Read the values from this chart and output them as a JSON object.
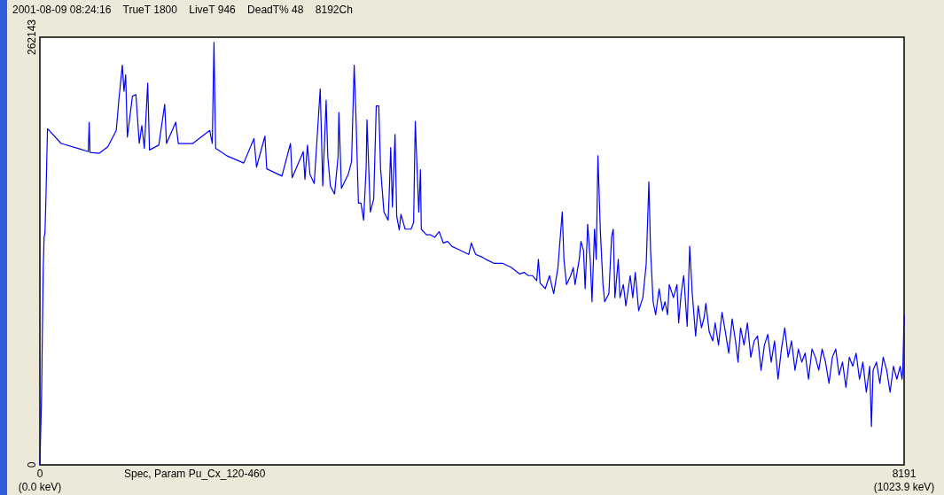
{
  "chart_data": {
    "type": "line",
    "title": "2001-08-09 08:24:16    TrueT 1800    LiveT 946    DeadT% 48    8192Ch",
    "annotations": [
      "Spec, Param Pu_Cx_120-460"
    ],
    "xlim": [
      0,
      8191
    ],
    "xticks": [
      0,
      8191
    ],
    "x2lim": [
      0,
      1023.9
    ],
    "x2ticks": [
      {
        "value": 0,
        "label": "(0.0 keV)"
      },
      {
        "value": 1023.9,
        "label": "(1023.9 keV)"
      }
    ],
    "ylim": [
      0,
      262143
    ],
    "yticks": [
      0,
      262143
    ],
    "grid": false,
    "marker": "none",
    "line_style": "solid",
    "series": [
      {
        "color": "#0000ff",
        "x": [
          0,
          8,
          16,
          24,
          32,
          40,
          48,
          56,
          72,
          89,
          201,
          362,
          459,
          467,
          475,
          563,
          644,
          724,
          749,
          781,
          797,
          813,
          829,
          877,
          910,
          942,
          966,
          990,
          1022,
          1039,
          1127,
          1183,
          1200,
          1288,
          1312,
          1449,
          1610,
          1634,
          1650,
          1666,
          1771,
          1932,
          2029,
          2053,
          2133,
          2150,
          2294,
          2375,
          2391,
          2496,
          2512,
          2536,
          2560,
          2600,
          2657,
          2681,
          2713,
          2729,
          2753,
          2793,
          2826,
          2834,
          2858,
          2922,
          2954,
          2979,
          2995,
          3019,
          3043,
          3068,
          3092,
          3100,
          3132,
          3164,
          3188,
          3212,
          3229,
          3261,
          3301,
          3309,
          3325,
          3341,
          3366,
          3382,
          3406,
          3422,
          3462,
          3518,
          3542,
          3558,
          3591,
          3607,
          3615,
          3663,
          3703,
          3743,
          3784,
          3824,
          3864,
          3904,
          3985,
          4065,
          4089,
          4130,
          4186,
          4226,
          4307,
          4387,
          4468,
          4548,
          4588,
          4629,
          4669,
          4709,
          4725,
          4741,
          4790,
          4830,
          4870,
          4910,
          4935,
          4951,
          4967,
          4991,
          5031,
          5055,
          5072,
          5112,
          5128,
          5152,
          5168,
          5192,
          5216,
          5233,
          5257,
          5273,
          5289,
          5313,
          5337,
          5353,
          5393,
          5418,
          5434,
          5450,
          5482,
          5498,
          5530,
          5554,
          5595,
          5619,
          5643,
          5675,
          5715,
          5747,
          5772,
          5788,
          5812,
          5836,
          5869,
          5901,
          5925,
          5949,
          5965,
          6005,
          6038,
          6054,
          6078,
          6102,
          6135,
          6159,
          6183,
          6215,
          6239,
          6271,
          6296,
          6312,
          6344,
          6377,
          6400,
          6432,
          6465,
          6497,
          6529,
          6561,
          6593,
          6617,
          6641,
          6674,
          6706,
          6738,
          6770,
          6802,
          6835,
          6867,
          6899,
          6931,
          6963,
          6996,
          7028,
          7060,
          7092,
          7124,
          7157,
          7189,
          7221,
          7253,
          7285,
          7318,
          7350,
          7382,
          7414,
          7446,
          7479,
          7511,
          7543,
          7575,
          7607,
          7640,
          7672,
          7704,
          7736,
          7768,
          7800,
          7833,
          7865,
          7881,
          7897,
          7929,
          7961,
          7993,
          8026,
          8058,
          8090,
          8122,
          8154,
          8171,
          8179,
          8191
        ],
        "values": [
          0,
          21000,
          42000,
          84000,
          121000,
          139500,
          142000,
          160000,
          206000,
          205000,
          197000,
          194000,
          192000,
          210000,
          191500,
          191000,
          195000,
          205000,
          224000,
          245000,
          229000,
          239000,
          201000,
          226000,
          227000,
          197000,
          208000,
          194000,
          234000,
          193000,
          196000,
          221000,
          197000,
          210000,
          197000,
          197000,
          205000,
          197000,
          259000,
          194000,
          189500,
          185000,
          200000,
          182500,
          201500,
          181500,
          177000,
          197000,
          176000,
          192000,
          175000,
          196000,
          178000,
          172500,
          230500,
          171000,
          223500,
          189000,
          171000,
          166000,
          189000,
          216000,
          169500,
          178000,
          186000,
          245000,
          215000,
          160500,
          160500,
          150000,
          181500,
          211500,
          155000,
          163000,
          220000,
          220000,
          181500,
          155000,
          150000,
          163000,
          194500,
          158000,
          202500,
          152500,
          144000,
          153500,
          144500,
          144500,
          148500,
          210500,
          155000,
          181000,
          144500,
          141000,
          141000,
          139500,
          143000,
          136000,
          137000,
          134000,
          131500,
          129000,
          136000,
          129000,
          127500,
          126000,
          123500,
          123500,
          121000,
          117000,
          118000,
          116000,
          116000,
          113000,
          126000,
          111500,
          108000,
          116000,
          105000,
          121000,
          142000,
          155000,
          126000,
          110500,
          116000,
          121000,
          110500,
          126000,
          137000,
          131500,
          108000,
          147500,
          126000,
          100000,
          144500,
          126000,
          189500,
          142000,
          110500,
          100000,
          105000,
          139500,
          144500,
          102500,
          126000,
          102500,
          110500,
          97500,
          116000,
          102500,
          118000,
          94500,
          102500,
          123500,
          173500,
          131500,
          100000,
          92000,
          108000,
          94500,
          100000,
          92000,
          110500,
          102500,
          110500,
          87000,
          105000,
          116000,
          85000,
          134000,
          105000,
          79000,
          97500,
          84000,
          90500,
          99000,
          81500,
          76000,
          87000,
          73500,
          93500,
          81500,
          68500,
          89500,
          76000,
          63000,
          84000,
          73500,
          87000,
          66000,
          76000,
          79000,
          58000,
          73500,
          80000,
          63000,
          76000,
          52500,
          71000,
          84000,
          66000,
          76000,
          58000,
          71000,
          63000,
          68500,
          52500,
          71000,
          66000,
          58000,
          71000,
          63000,
          50000,
          66000,
          71000,
          55000,
          63000,
          47500,
          66000,
          60500,
          68500,
          52500,
          63000,
          44500,
          60500,
          23500,
          58000,
          63000,
          50000,
          66000,
          58000,
          44500,
          60500,
          52500,
          60500,
          52500,
          58000,
          92000
        ]
      }
    ]
  }
}
